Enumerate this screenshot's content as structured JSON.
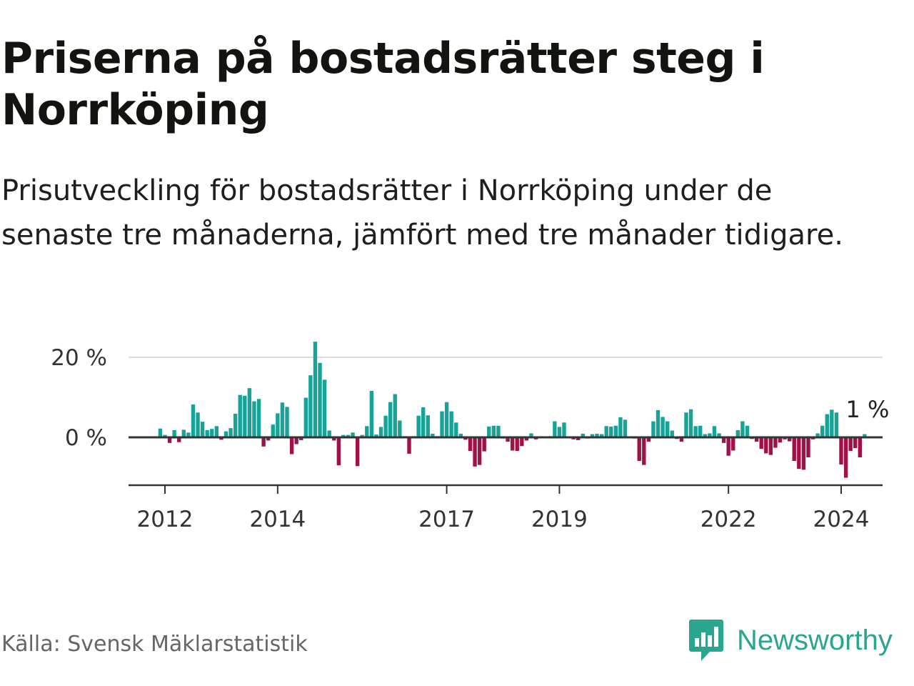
{
  "header": {
    "title": "Priserna på bostadsrätter steg i Norrköping",
    "subtitle": "Prisutveckling för bostadsrätter i Norrköping under de senaste tre månaderna, jämfört med tre månader tidigare."
  },
  "footer": {
    "source": "Källa: Svensk Mäklarstatistik",
    "brand": "Newsworthy"
  },
  "colors": {
    "positive": "#17a398",
    "negative": "#a01247",
    "grid": "#dddddd",
    "axis": "#333333",
    "brand": "#2aa58e"
  },
  "chart_data": {
    "type": "bar",
    "title": "Priserna på bostadsrätter steg i Norrköping",
    "xlabel": "",
    "ylabel": "",
    "unit": "%",
    "ylim": [
      -12,
      24
    ],
    "y_ticks": [
      {
        "value": 0,
        "label": "0 %"
      },
      {
        "value": 20,
        "label": "20 %"
      }
    ],
    "x_ticks": [
      {
        "x": 2012.0,
        "label": "2012"
      },
      {
        "x": 2014.0,
        "label": "2014"
      },
      {
        "x": 2017.0,
        "label": "2017"
      },
      {
        "x": 2019.0,
        "label": "2019"
      },
      {
        "x": 2022.0,
        "label": "2022"
      },
      {
        "x": 2024.0,
        "label": "2024"
      }
    ],
    "x_start": 2011.9167,
    "step_months": 1,
    "end_label": "1 %",
    "values": [
      2.2,
      0.6,
      -1.4,
      1.8,
      -1.2,
      1.9,
      1.2,
      8.2,
      6.2,
      3.9,
      1.8,
      2.1,
      2.8,
      -0.6,
      1.5,
      2.3,
      5.9,
      10.6,
      10.4,
      12.3,
      9.0,
      9.6,
      -2.3,
      -0.8,
      3.2,
      6.0,
      8.7,
      7.6,
      -4.2,
      -1.7,
      -0.7,
      9.9,
      15.5,
      23.9,
      18.6,
      14.4,
      1.7,
      -0.8,
      -7.0,
      0.6,
      0.6,
      1.2,
      -7.2,
      0.6,
      2.8,
      11.6,
      0.7,
      2.6,
      5.4,
      8.8,
      10.8,
      4.2,
      0.3,
      -4.1,
      0.3,
      5.4,
      7.5,
      5.5,
      0.9,
      0.3,
      6.5,
      8.8,
      6.5,
      3.7,
      0.9,
      -0.6,
      -3.4,
      -7.3,
      -6.9,
      -3.5,
      2.7,
      2.9,
      2.9,
      -0.3,
      -1.1,
      -3.3,
      -3.4,
      -2.2,
      -0.8,
      1.0,
      -0.5,
      0.1,
      0.1,
      0.3,
      4.0,
      2.6,
      3.7,
      0.2,
      -0.5,
      -0.7,
      0.9,
      -0.3,
      0.8,
      0.9,
      0.8,
      2.8,
      2.7,
      2.9,
      5.0,
      4.4,
      0.2,
      -0.3,
      -5.9,
      -6.9,
      -1.1,
      4.0,
      6.8,
      5.1,
      4.0,
      1.7,
      -0.4,
      -1.1,
      6.2,
      7.0,
      2.8,
      2.9,
      0.8,
      1.0,
      2.8,
      1.0,
      -1.4,
      -4.6,
      -3.3,
      1.8,
      4.0,
      2.9,
      -0.4,
      -1.1,
      -2.9,
      -4.0,
      -4.4,
      -2.6,
      -1.3,
      -0.5,
      -1.0,
      -5.9,
      -7.9,
      -8.1,
      -5.0,
      -0.5,
      1.0,
      2.9,
      5.8,
      6.9,
      6.2,
      -6.8,
      -10.1,
      -3.4,
      -2.7,
      -5.0,
      0.8
    ]
  }
}
